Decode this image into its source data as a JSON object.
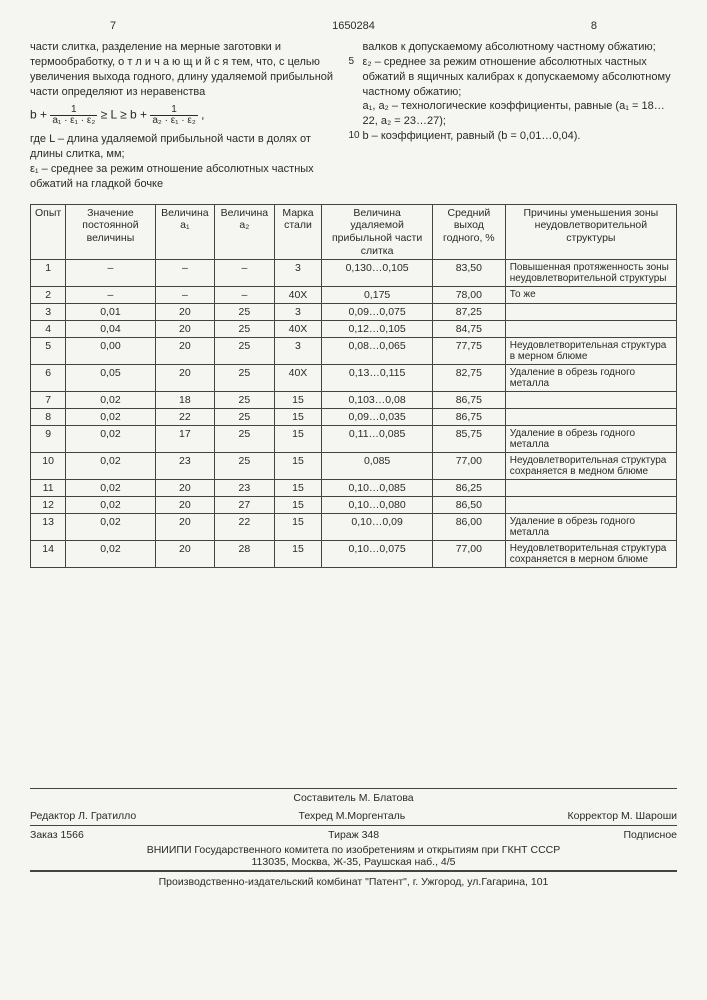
{
  "header": {
    "left_page": "7",
    "doc_number": "1650284",
    "right_page": "8"
  },
  "left_col": {
    "p1": "части слитка, разделение на мерные заготовки и термообработку, о т л и ч а ю щ и й с я  тем, что, с целью увеличения выхода годного, длину удаляемой прибыльной части определяют из неравенства",
    "formula_lhs_b": "b +",
    "formula_frac1_num": "1",
    "formula_frac1_den": "a₁ · ε₁ · ε₂",
    "formula_mid": " ≥ L ≥ b + ",
    "formula_frac2_num": "1",
    "formula_frac2_den": "a₂ · ε₁ · ε₂",
    "formula_comma": ",",
    "p2": "где L – длина удаляемой прибыльной части в долях от длины слитка, мм;",
    "p3": "ε₁ – среднее за режим отношение абсолютных частных обжатий на гладкой бочке"
  },
  "right_col": {
    "p1": "валков к допускаемому абсолютному частному обжатию;",
    "p2": "ε₂ – среднее за режим отношение абсолютных частных обжатий в ящичных калибрах к допускаемому абсолютному частному обжатию;",
    "p3": "a₁, a₂ – технологические коэффициенты, равные (a₁ = 18…22, a₂ = 23…27);",
    "p4": "b – коэффициент, равный (b = 0,01…0,04).",
    "marker5": "5",
    "marker10": "10"
  },
  "table": {
    "headers": [
      "Опыт",
      "Значение постоянной величины",
      "Величина a₁",
      "Величина a₂",
      "Марка стали",
      "Величина удаляемой прибыльной части слитка",
      "Средний выход годного, %",
      "Причины уменьшения зоны неудовлетворительной структуры"
    ],
    "rows": [
      [
        "1",
        "–",
        "–",
        "–",
        "3",
        "0,130…0,105",
        "83,50",
        "Повышенная протяженность зоны неудовлетворительной структуры"
      ],
      [
        "2",
        "–",
        "–",
        "–",
        "40Х",
        "0,175",
        "78,00",
        "То же"
      ],
      [
        "3",
        "0,01",
        "20",
        "25",
        "3",
        "0,09…0,075",
        "87,25",
        ""
      ],
      [
        "4",
        "0,04",
        "20",
        "25",
        "40Х",
        "0,12…0,105",
        "84,75",
        ""
      ],
      [
        "5",
        "0,00",
        "20",
        "25",
        "3",
        "0,08…0,065",
        "77,75",
        "Неудовлетворительная структура в мерном блюме"
      ],
      [
        "6",
        "0,05",
        "20",
        "25",
        "40Х",
        "0,13…0,115",
        "82,75",
        "Удаление в обрезь годного металла"
      ],
      [
        "7",
        "0,02",
        "18",
        "25",
        "15",
        "0,103…0,08",
        "86,75",
        ""
      ],
      [
        "8",
        "0,02",
        "22",
        "25",
        "15",
        "0,09…0,035",
        "86,75",
        ""
      ],
      [
        "9",
        "0,02",
        "17",
        "25",
        "15",
        "0,11…0,085",
        "85,75",
        "Удаление в обрезь годного металла"
      ],
      [
        "10",
        "0,02",
        "23",
        "25",
        "15",
        "0,085",
        "77,00",
        "Неудовлетворительная структура сохраняется в медном блюме"
      ],
      [
        "11",
        "0,02",
        "20",
        "23",
        "15",
        "0,10…0,085",
        "86,25",
        ""
      ],
      [
        "12",
        "0,02",
        "20",
        "27",
        "15",
        "0,10…0,080",
        "86,50",
        ""
      ],
      [
        "13",
        "0,02",
        "20",
        "22",
        "15",
        "0,10…0,09",
        "86,00",
        "Удаление в обрезь годного металла"
      ],
      [
        "14",
        "0,02",
        "20",
        "28",
        "15",
        "0,10…0,075",
        "77,00",
        "Неудовлетворительная структура сохраняется в мерном блюме"
      ]
    ]
  },
  "footer": {
    "compiler": "Составитель М. Блатова",
    "editor": "Редактор  Л. Гратилло",
    "techred": "Техред М.Моргенталь",
    "corrector": "Корректор  М. Шароши",
    "order": "Заказ 1566",
    "tirazh": "Тираж 348",
    "subscr": "Подписное",
    "org": "ВНИИПИ Государственного комитета по изобретениям и открытиям при ГКНТ СССР",
    "addr": "113035, Москва, Ж-35, Раушская наб., 4/5",
    "printer": "Производственно-издательский комбинат \"Патент\", г. Ужгород, ул.Гагарина, 101"
  }
}
